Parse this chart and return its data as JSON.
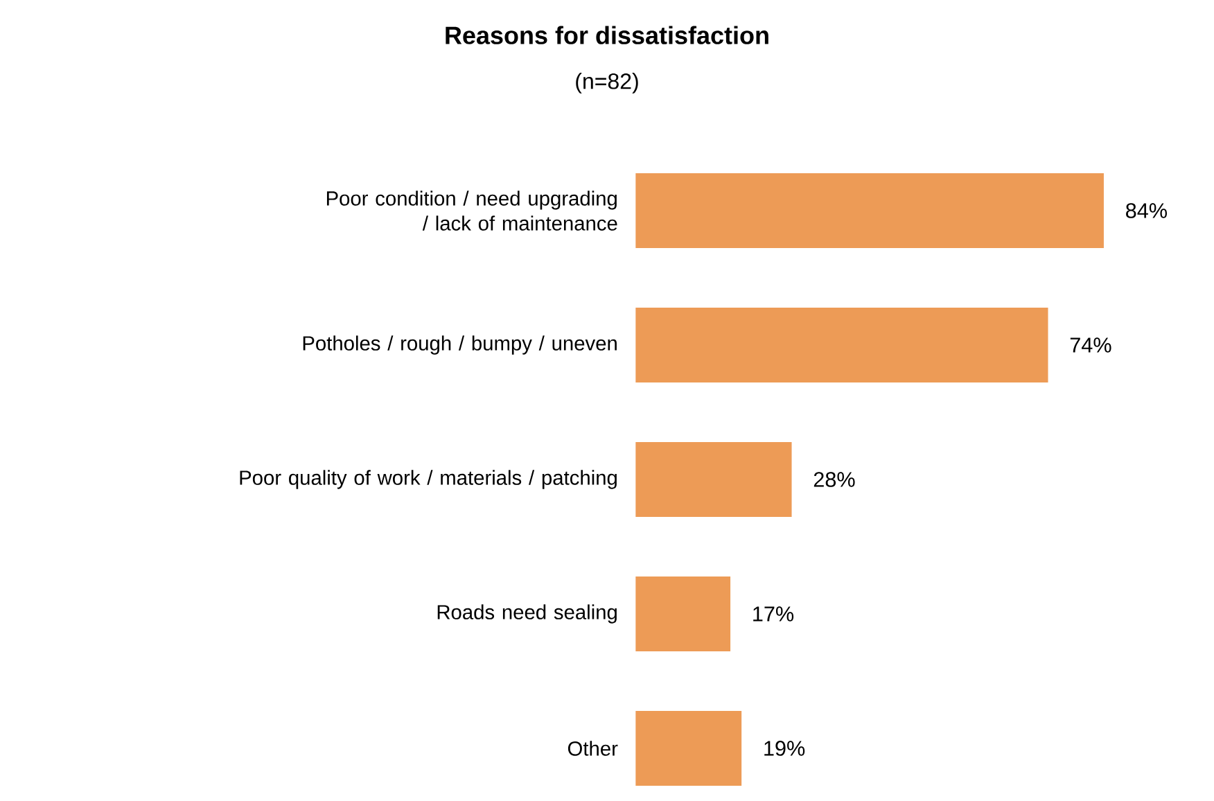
{
  "chart_data": {
    "type": "bar",
    "orientation": "horizontal",
    "title": "Reasons for dissatisfaction",
    "subtitle": "(n=82)",
    "categories": [
      "Poor condition / need upgrading / lack of maintenance",
      "Potholes / rough / bumpy / uneven",
      "Poor quality of work / materials / patching",
      "Roads need sealing",
      "Other"
    ],
    "values": [
      84,
      74,
      28,
      17,
      19
    ],
    "value_labels": [
      "84%",
      "74%",
      "28%",
      "17%",
      "19%"
    ],
    "color": "#ed9b56"
  }
}
